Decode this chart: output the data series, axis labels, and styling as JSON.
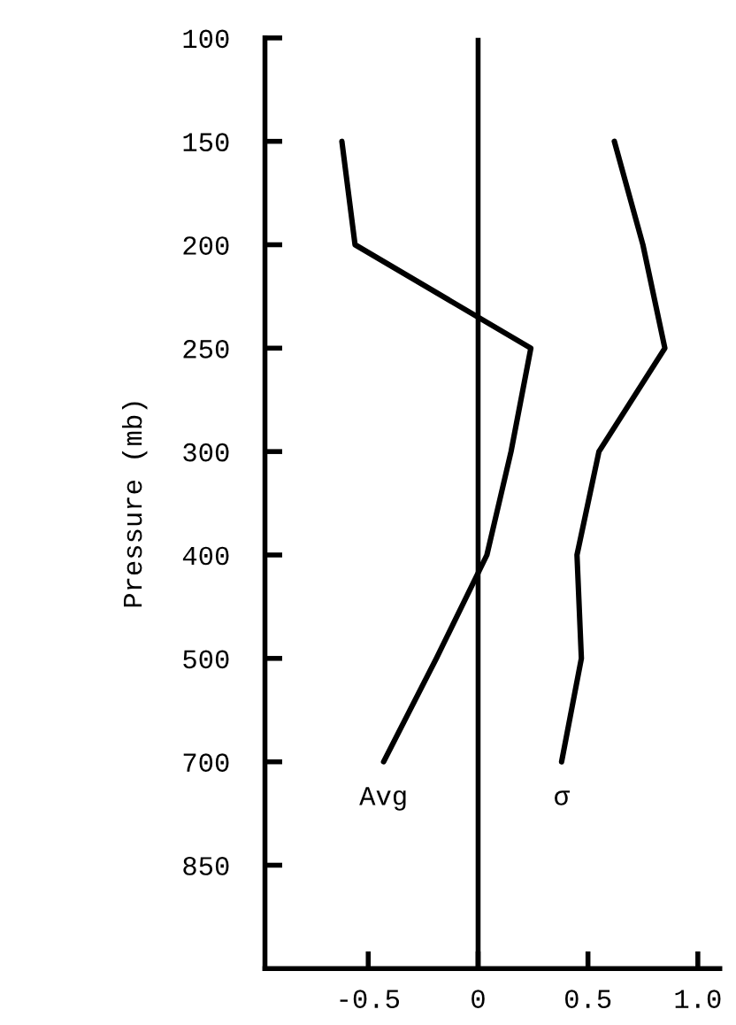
{
  "chart_data": {
    "type": "line",
    "orientation": "horizontal",
    "ylabel": "Pressure (mb)",
    "categories": [
      "100",
      "150",
      "200",
      "250",
      "300",
      "400",
      "500",
      "700",
      "850"
    ],
    "series": [
      {
        "name": "Avg",
        "color": "#000000",
        "values": [
          null,
          -0.62,
          -0.56,
          0.24,
          0.15,
          0.04,
          -0.19,
          -0.43,
          null
        ]
      },
      {
        "name": "σ",
        "color": "#000000",
        "values": [
          null,
          0.62,
          0.75,
          0.85,
          0.55,
          0.45,
          0.47,
          0.38,
          null
        ]
      }
    ],
    "xlim": [
      -0.97,
      1.1
    ],
    "xticks": [
      {
        "value": -0.5,
        "label": "-0.5"
      },
      0,
      0.5,
      {
        "value": 1,
        "label": "1.0"
      }
    ],
    "ref_lines": [
      {
        "axis": "x",
        "value": 0,
        "color": "#000000"
      }
    ],
    "grid": false,
    "legend": false,
    "marker": "none",
    "line_style": "solid"
  }
}
